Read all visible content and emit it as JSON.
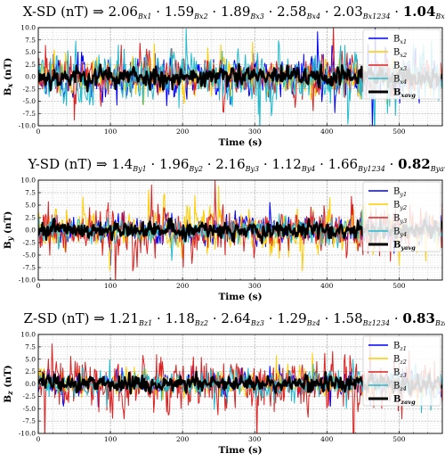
{
  "chart_data": [
    {
      "type": "line",
      "title": {
        "prefix": "X-SD (nT) ⇒ ",
        "parts": [
          {
            "value": "2.06",
            "sub": "x1"
          },
          {
            "value": "1.59",
            "sub": "x2"
          },
          {
            "value": "1.89",
            "sub": "x3"
          },
          {
            "value": "2.58",
            "sub": "x4"
          },
          {
            "value": "2.03",
            "sub": "x1234"
          }
        ],
        "avg": {
          "value": "1.04",
          "sub": "xavg"
        }
      },
      "xlabel": "Time (s)",
      "ylabel": {
        "main": "B",
        "sub": "x",
        "unit": " (nT)"
      },
      "xlim": [
        0,
        560
      ],
      "ylim": [
        -10,
        10
      ],
      "xticks": [
        0,
        100,
        200,
        300,
        400,
        500
      ],
      "yticks": [
        -10.0,
        -7.5,
        -5.0,
        -2.5,
        0.0,
        2.5,
        5.0,
        7.5,
        10.0
      ],
      "grid": true,
      "legend_position": "top-right",
      "series": [
        {
          "name": "B",
          "sub": "x1",
          "color": "#0000ff",
          "std": 2.06,
          "seed": 11
        },
        {
          "name": "B",
          "sub": "x2",
          "color": "#ffcc00",
          "std": 1.59,
          "seed": 23
        },
        {
          "name": "B",
          "sub": "x3",
          "color": "#dd2222",
          "std": 1.89,
          "seed": 37
        },
        {
          "name": "B",
          "sub": "x4",
          "color": "#22bbcc",
          "std": 2.58,
          "seed": 41
        },
        {
          "name": "B",
          "sub": "xavg",
          "color": "#000000",
          "std": 1.04,
          "seed": 53,
          "bold": true
        }
      ]
    },
    {
      "type": "line",
      "title": {
        "prefix": "Y-SD (nT) ⇒ ",
        "parts": [
          {
            "value": "1.4",
            "sub": "y1"
          },
          {
            "value": "1.96",
            "sub": "y2"
          },
          {
            "value": "2.16",
            "sub": "y3"
          },
          {
            "value": "1.12",
            "sub": "y4"
          },
          {
            "value": "1.66",
            "sub": "y1234"
          }
        ],
        "avg": {
          "value": "0.82",
          "sub": "yavg"
        }
      },
      "xlabel": "Time (s)",
      "ylabel": {
        "main": "B",
        "sub": "y",
        "unit": " (nT)"
      },
      "xlim": [
        0,
        560
      ],
      "ylim": [
        -10,
        10
      ],
      "xticks": [
        0,
        100,
        200,
        300,
        400,
        500
      ],
      "yticks": [
        -10.0,
        -7.5,
        -5.0,
        -2.5,
        0.0,
        2.5,
        5.0,
        7.5,
        10.0
      ],
      "grid": true,
      "legend_position": "top-right",
      "series": [
        {
          "name": "B",
          "sub": "y1",
          "color": "#0000ff",
          "std": 1.4,
          "seed": 61
        },
        {
          "name": "B",
          "sub": "y2",
          "color": "#ffcc00",
          "std": 1.96,
          "seed": 73
        },
        {
          "name": "B",
          "sub": "y3",
          "color": "#dd2222",
          "std": 2.16,
          "seed": 83
        },
        {
          "name": "B",
          "sub": "y4",
          "color": "#22bbcc",
          "std": 1.12,
          "seed": 97
        },
        {
          "name": "B",
          "sub": "yavg",
          "color": "#000000",
          "std": 0.82,
          "seed": 101,
          "bold": true
        }
      ]
    },
    {
      "type": "line",
      "title": {
        "prefix": "Z-SD (nT) ⇒ ",
        "parts": [
          {
            "value": "1.21",
            "sub": "z1"
          },
          {
            "value": "1.18",
            "sub": "z2"
          },
          {
            "value": "2.64",
            "sub": "z3"
          },
          {
            "value": "1.29",
            "sub": "z4"
          },
          {
            "value": "1.58",
            "sub": "z1234"
          }
        ],
        "avg": {
          "value": "0.83",
          "sub": "zavg"
        }
      },
      "xlabel": "Time (s)",
      "ylabel": {
        "main": "B",
        "sub": "z",
        "unit": " (nT)"
      },
      "xlim": [
        0,
        560
      ],
      "ylim": [
        -10,
        10
      ],
      "xticks": [
        0,
        100,
        200,
        300,
        400,
        500
      ],
      "yticks": [
        -10.0,
        -7.5,
        -5.0,
        -2.5,
        0.0,
        2.5,
        5.0,
        7.5,
        10.0
      ],
      "grid": true,
      "legend_position": "top-right",
      "series": [
        {
          "name": "B",
          "sub": "z1",
          "color": "#0000ff",
          "std": 1.21,
          "seed": 113
        },
        {
          "name": "B",
          "sub": "z2",
          "color": "#ffcc00",
          "std": 1.18,
          "seed": 127
        },
        {
          "name": "B",
          "sub": "z3",
          "color": "#dd2222",
          "std": 2.64,
          "seed": 131
        },
        {
          "name": "B",
          "sub": "z4",
          "color": "#22bbcc",
          "std": 1.29,
          "seed": 137
        },
        {
          "name": "B",
          "sub": "zavg",
          "color": "#000000",
          "std": 0.83,
          "seed": 149,
          "bold": true
        }
      ]
    }
  ]
}
